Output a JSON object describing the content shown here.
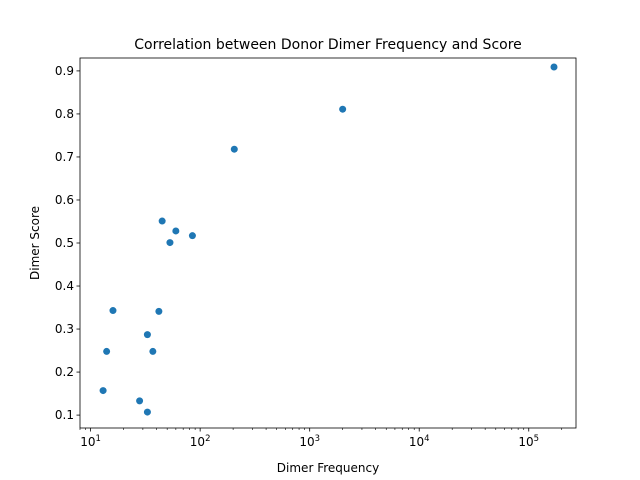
{
  "chart_data": {
    "type": "scatter",
    "title": "Correlation between Donor Dimer Frequency and Score",
    "xlabel": "Dimer Frequency",
    "ylabel": "Dimer Score",
    "xscale": "log",
    "xlim": [
      8,
      270000
    ],
    "ylim": [
      0.07,
      0.93
    ],
    "xticks": [
      {
        "value": 10,
        "base": "10",
        "exp": "1"
      },
      {
        "value": 100,
        "base": "10",
        "exp": "2"
      },
      {
        "value": 1000,
        "base": "10",
        "exp": "3"
      },
      {
        "value": 10000,
        "base": "10",
        "exp": "4"
      },
      {
        "value": 100000,
        "base": "10",
        "exp": "5"
      }
    ],
    "yticks": [
      "0.1",
      "0.2",
      "0.3",
      "0.4",
      "0.5",
      "0.6",
      "0.7",
      "0.8",
      "0.9"
    ],
    "grid": false,
    "marker_color": "#1f77b4",
    "points": [
      {
        "x": 13,
        "y": 0.157
      },
      {
        "x": 14,
        "y": 0.248
      },
      {
        "x": 16,
        "y": 0.343
      },
      {
        "x": 28,
        "y": 0.133
      },
      {
        "x": 33,
        "y": 0.107
      },
      {
        "x": 33,
        "y": 0.287
      },
      {
        "x": 37,
        "y": 0.248
      },
      {
        "x": 42,
        "y": 0.341
      },
      {
        "x": 45,
        "y": 0.551
      },
      {
        "x": 53,
        "y": 0.501
      },
      {
        "x": 60,
        "y": 0.528
      },
      {
        "x": 85,
        "y": 0.517
      },
      {
        "x": 205,
        "y": 0.718
      },
      {
        "x": 2000,
        "y": 0.811
      },
      {
        "x": 170000,
        "y": 0.909
      }
    ]
  }
}
